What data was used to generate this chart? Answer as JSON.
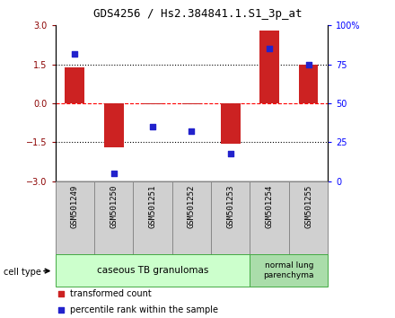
{
  "title": "GDS4256 / Hs2.384841.1.S1_3p_at",
  "samples": [
    "GSM501249",
    "GSM501250",
    "GSM501251",
    "GSM501252",
    "GSM501253",
    "GSM501254",
    "GSM501255"
  ],
  "transformed_counts": [
    1.4,
    -1.7,
    -0.05,
    -0.05,
    -1.55,
    2.8,
    1.5
  ],
  "percentile_ranks": [
    82,
    5,
    35,
    32,
    18,
    85,
    75
  ],
  "bar_color": "#cc2222",
  "dot_color": "#2222cc",
  "ylim_left": [
    -3,
    3
  ],
  "ylim_right": [
    0,
    100
  ],
  "yticks_left": [
    -3,
    -1.5,
    0,
    1.5,
    3
  ],
  "yticks_right": [
    0,
    25,
    50,
    75,
    100
  ],
  "ytick_labels_right": [
    "0",
    "25",
    "50",
    "75",
    "100%"
  ],
  "hlines": [
    1.5,
    0.0,
    -1.5
  ],
  "hline_styles": [
    "dotted",
    "dashed_red",
    "dotted"
  ],
  "group1_count": 5,
  "group1_label": "caseous TB granulomas",
  "group1_color": "#ccffcc",
  "group1_edge": "#44aa44",
  "group2_count": 2,
  "group2_label": "normal lung\nparenchyma",
  "group2_color": "#aaddaa",
  "group2_edge": "#44aa44",
  "cell_type_label": "cell type",
  "sample_box_color": "#d0d0d0",
  "sample_box_edge": "#888888",
  "legend_items": [
    {
      "color": "#cc2222",
      "label": "transformed count"
    },
    {
      "color": "#2222cc",
      "label": "percentile rank within the sample"
    }
  ]
}
